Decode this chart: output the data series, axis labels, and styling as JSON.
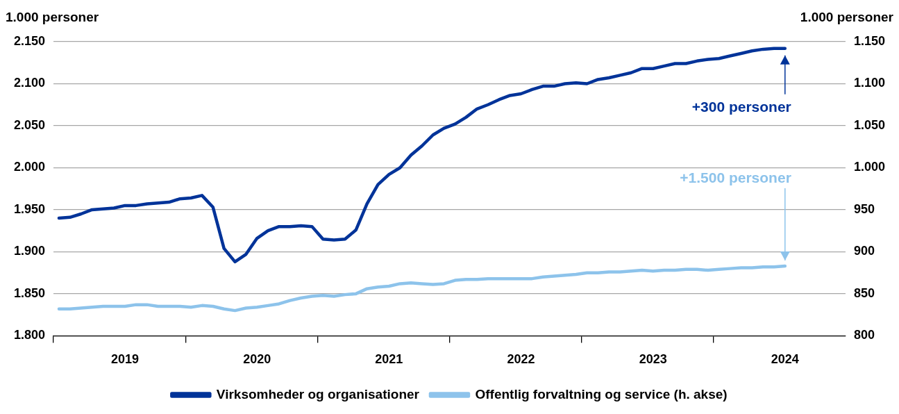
{
  "chart_data": {
    "type": "line",
    "ylabel": "1.000 personer",
    "y2label": "1.000 personer",
    "categories": [
      null,
      null,
      null,
      null,
      null,
      null,
      "2019",
      null,
      null,
      null,
      null,
      null,
      null,
      null,
      null,
      null,
      null,
      null,
      "2020",
      null,
      null,
      null,
      null,
      null,
      null,
      null,
      null,
      null,
      null,
      null,
      "2021",
      null,
      null,
      null,
      null,
      null,
      null,
      null,
      null,
      null,
      null,
      null,
      "2022",
      null,
      null,
      null,
      null,
      null,
      null,
      null,
      null,
      null,
      null,
      null,
      "2023",
      null,
      null,
      null,
      null,
      null,
      null,
      null,
      null,
      null,
      null,
      null,
      "2024",
      null,
      null,
      null,
      null,
      null
    ],
    "series": [
      {
        "name": "Virksomheder og organisationer",
        "color": "#003399",
        "values": [
          1940,
          1941,
          1945,
          1950,
          1951,
          1952,
          1955,
          1955,
          1957,
          1958,
          1959,
          1963,
          1964,
          1967,
          1953,
          1904,
          1888,
          1897,
          1916,
          1925,
          1930,
          1930,
          1931,
          1930,
          1915,
          1914,
          1915,
          1926,
          1957,
          1980,
          1992,
          2000,
          2015,
          2026,
          2039,
          2047,
          2052,
          2060,
          2070,
          2075,
          2081,
          2086,
          2088,
          2093,
          2097,
          2097,
          2100,
          2101,
          2100,
          2105,
          2107,
          2110,
          2113,
          2118,
          2118,
          2121,
          2124,
          2124,
          2127,
          2129,
          2130,
          2133,
          2136,
          2139,
          2141,
          2142,
          2142,
          null,
          null,
          null,
          null,
          null
        ]
      },
      {
        "name": "Offentlig forvaltning og service (h. akse)",
        "color": "#8dc3eb",
        "axis": "y2",
        "values": [
          832,
          832,
          833,
          834,
          835,
          835,
          835,
          837,
          837,
          835,
          835,
          835,
          834,
          836,
          835,
          832,
          830,
          833,
          834,
          836,
          838,
          842,
          845,
          847,
          848,
          847,
          849,
          850,
          856,
          858,
          859,
          862,
          863,
          862,
          861,
          862,
          866,
          867,
          867,
          868,
          868,
          868,
          868,
          868,
          870,
          871,
          872,
          873,
          875,
          875,
          876,
          876,
          877,
          878,
          877,
          878,
          878,
          879,
          879,
          878,
          879,
          880,
          881,
          881,
          882,
          882,
          883,
          null,
          null,
          null,
          null,
          null
        ]
      }
    ],
    "ylim": [
      1800,
      2150
    ],
    "yticks": [
      {
        "value": 1800,
        "label": "1.800"
      },
      {
        "value": 1850,
        "label": "1.850"
      },
      {
        "value": 1900,
        "label": "1.900"
      },
      {
        "value": 1950,
        "label": "1.950"
      },
      {
        "value": 2000,
        "label": "2.000"
      },
      {
        "value": 2050,
        "label": "2.050"
      },
      {
        "value": 2100,
        "label": "2.100"
      },
      {
        "value": 2150,
        "label": "2.150"
      }
    ],
    "y2lim": [
      800,
      1150
    ],
    "y2ticks": [
      800,
      850,
      900,
      950,
      {
        "value": 1000,
        "label": "1.000"
      },
      {
        "value": 1050,
        "label": "1.050"
      },
      {
        "value": 1100,
        "label": "1.100"
      },
      {
        "value": 1150,
        "label": "1.150"
      }
    ],
    "annotations": [
      "+300 personer",
      "+1.500 personer"
    ],
    "grid": "y",
    "legend": "bottom",
    "marker": "none",
    "line_style": "solid"
  }
}
